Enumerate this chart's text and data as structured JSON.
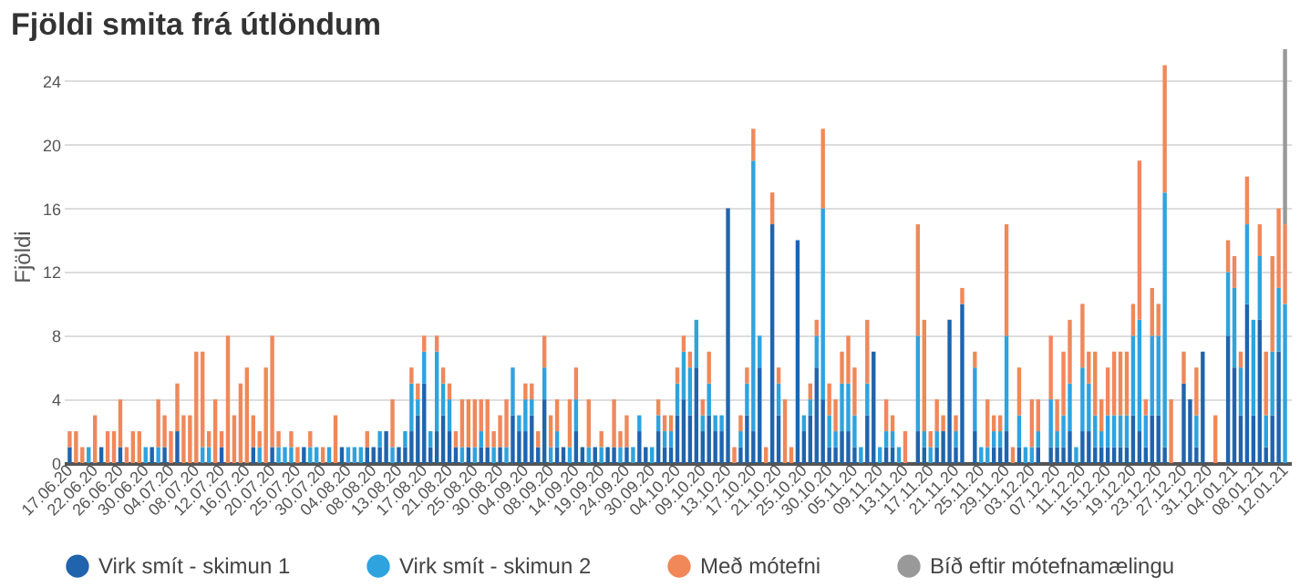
{
  "chart_data": {
    "type": "bar",
    "title": "Fjöldi smita frá útlöndum",
    "ylabel": "Fjöldi",
    "stacked": true,
    "grid": "y",
    "legend": "bottom",
    "ylim": [
      0,
      26
    ],
    "yticks": [
      0,
      4,
      8,
      12,
      16,
      20,
      24
    ],
    "categories": [
      "17.06.20",
      null,
      null,
      null,
      "22.06.20",
      null,
      null,
      null,
      "26.06.20",
      null,
      null,
      null,
      "30.06.20",
      null,
      null,
      null,
      "04.07.20",
      null,
      null,
      null,
      "08.07.20",
      null,
      null,
      null,
      "12.07.20",
      null,
      null,
      null,
      "16.07.20",
      null,
      null,
      null,
      "20.07.20",
      null,
      null,
      null,
      "25.07.20",
      null,
      null,
      null,
      "30.07.20",
      null,
      null,
      null,
      "04.08.20",
      null,
      null,
      null,
      "08.08.20",
      null,
      null,
      null,
      "13.08.20",
      null,
      null,
      null,
      "17.08.20",
      null,
      null,
      null,
      "21.08.20",
      null,
      null,
      null,
      "25.08.20",
      null,
      null,
      null,
      "30.08.20",
      null,
      null,
      null,
      "04.09.20",
      null,
      null,
      null,
      "08.09.20",
      null,
      null,
      null,
      "14.09.20",
      null,
      null,
      null,
      "19.09.20",
      null,
      null,
      null,
      "24.09.20",
      null,
      null,
      null,
      "30.09.20",
      null,
      null,
      null,
      "04.10.20",
      null,
      null,
      null,
      "09.10.20",
      null,
      null,
      null,
      "13.10.20",
      null,
      null,
      null,
      "17.10.20",
      null,
      null,
      null,
      "21.10.20",
      null,
      null,
      null,
      "25.10.20",
      null,
      null,
      null,
      "30.10.20",
      null,
      null,
      null,
      "05.11.20",
      null,
      null,
      null,
      "09.11.20",
      null,
      null,
      null,
      "13.11.20",
      null,
      null,
      null,
      "17.11.20",
      null,
      null,
      null,
      "21.11.20",
      null,
      null,
      null,
      "25.11.20",
      null,
      null,
      null,
      "29.11.20",
      null,
      null,
      null,
      "03.12.20",
      null,
      null,
      null,
      "07.12.20",
      null,
      null,
      null,
      "11.12.20",
      null,
      null,
      null,
      "15.12.20",
      null,
      null,
      null,
      "19.12.20",
      null,
      null,
      null,
      "23.12.20",
      null,
      null,
      null,
      "27.12.20",
      null,
      null,
      null,
      "31.12.20",
      null,
      null,
      null,
      "04.01.21",
      null,
      null,
      null,
      "08.01.21",
      null,
      null,
      null,
      "12.01.21"
    ],
    "series": [
      {
        "name": "Virk smít - skimun 1",
        "color": "#1f64ad",
        "values": [
          1,
          0,
          0,
          0,
          0,
          1,
          0,
          0,
          1,
          0,
          0,
          0,
          0,
          1,
          0,
          1,
          0,
          2,
          0,
          0,
          0,
          0,
          0,
          0,
          1,
          0,
          0,
          0,
          0,
          1,
          0,
          0,
          1,
          0,
          0,
          0,
          0,
          1,
          0,
          0,
          0,
          0,
          0,
          1,
          0,
          0,
          0,
          1,
          1,
          1,
          2,
          0,
          1,
          1,
          2,
          3,
          5,
          1,
          2,
          3,
          2,
          1,
          0,
          1,
          0,
          1,
          1,
          0,
          1,
          0,
          3,
          2,
          2,
          3,
          1,
          4,
          0,
          1,
          1,
          0,
          2,
          1,
          0,
          1,
          0,
          1,
          1,
          0,
          1,
          0,
          2,
          1,
          0,
          2,
          1,
          1,
          3,
          4,
          3,
          6,
          2,
          3,
          2,
          2,
          16,
          0,
          1,
          3,
          2,
          6,
          0,
          15,
          3,
          0,
          0,
          14,
          2,
          3,
          6,
          4,
          1,
          1,
          2,
          2,
          1,
          0,
          3,
          7,
          0,
          1,
          1,
          0,
          0,
          0,
          2,
          1,
          0,
          1,
          2,
          9,
          1,
          10,
          0,
          2,
          0,
          0,
          1,
          1,
          2,
          0,
          1,
          0,
          0,
          1,
          0,
          1,
          1,
          1,
          2,
          0,
          2,
          2,
          1,
          1,
          1,
          1,
          1,
          1,
          3,
          2,
          1,
          3,
          3,
          1,
          0,
          0,
          5,
          4,
          1,
          7,
          0,
          0,
          0,
          8,
          6,
          3,
          10,
          3,
          9,
          1,
          3,
          7,
          0
        ]
      },
      {
        "name": "Virk smít - skimun 2",
        "color": "#2ea3de",
        "values": [
          0,
          0,
          0,
          1,
          0,
          0,
          0,
          0,
          0,
          0,
          0,
          0,
          1,
          0,
          1,
          0,
          0,
          0,
          0,
          0,
          0,
          1,
          1,
          0,
          0,
          0,
          0,
          0,
          0,
          0,
          1,
          0,
          0,
          1,
          1,
          1,
          0,
          0,
          1,
          1,
          0,
          1,
          0,
          0,
          1,
          1,
          1,
          0,
          0,
          1,
          0,
          1,
          0,
          1,
          3,
          1,
          2,
          1,
          5,
          2,
          2,
          0,
          1,
          0,
          1,
          1,
          0,
          1,
          0,
          1,
          3,
          1,
          2,
          1,
          0,
          2,
          1,
          1,
          0,
          1,
          2,
          0,
          1,
          0,
          1,
          0,
          0,
          1,
          0,
          1,
          1,
          0,
          1,
          1,
          1,
          1,
          2,
          3,
          3,
          3,
          1,
          2,
          1,
          1,
          0,
          0,
          1,
          2,
          17,
          2,
          0,
          0,
          2,
          0,
          0,
          0,
          1,
          1,
          2,
          12,
          2,
          1,
          3,
          3,
          2,
          1,
          2,
          0,
          1,
          1,
          1,
          1,
          0,
          0,
          6,
          1,
          1,
          1,
          0,
          0,
          1,
          0,
          0,
          4,
          1,
          1,
          1,
          1,
          6,
          0,
          2,
          1,
          1,
          1,
          0,
          3,
          1,
          2,
          3,
          1,
          4,
          3,
          2,
          1,
          2,
          2,
          2,
          2,
          5,
          7,
          2,
          5,
          5,
          16,
          0,
          0,
          0,
          0,
          2,
          0,
          0,
          0,
          0,
          4,
          5,
          3,
          5,
          6,
          4,
          2,
          4,
          4,
          10
        ]
      },
      {
        "name": "Með mótefni",
        "color": "#f0885a",
        "values": [
          1,
          2,
          1,
          0,
          3,
          0,
          2,
          2,
          3,
          1,
          2,
          2,
          0,
          0,
          3,
          2,
          2,
          3,
          3,
          3,
          7,
          6,
          1,
          4,
          1,
          8,
          3,
          5,
          6,
          2,
          1,
          6,
          7,
          1,
          0,
          1,
          1,
          0,
          1,
          0,
          1,
          0,
          3,
          0,
          0,
          0,
          0,
          1,
          0,
          0,
          0,
          3,
          0,
          0,
          1,
          1,
          1,
          0,
          1,
          1,
          1,
          1,
          3,
          3,
          3,
          2,
          3,
          1,
          2,
          3,
          0,
          0,
          1,
          1,
          1,
          2,
          2,
          2,
          0,
          3,
          2,
          0,
          3,
          0,
          1,
          0,
          3,
          1,
          2,
          0,
          0,
          0,
          0,
          1,
          1,
          1,
          1,
          1,
          1,
          0,
          1,
          2,
          0,
          0,
          0,
          1,
          1,
          1,
          2,
          0,
          1,
          2,
          1,
          4,
          1,
          0,
          0,
          1,
          1,
          5,
          2,
          2,
          2,
          3,
          3,
          0,
          4,
          0,
          0,
          2,
          1,
          0,
          2,
          0,
          7,
          7,
          1,
          2,
          1,
          0,
          1,
          1,
          0,
          1,
          0,
          3,
          1,
          1,
          7,
          1,
          3,
          0,
          3,
          2,
          0,
          4,
          2,
          4,
          4,
          0,
          4,
          2,
          4,
          2,
          3,
          4,
          4,
          4,
          2,
          10,
          1,
          3,
          2,
          8,
          4,
          0,
          2,
          0,
          3,
          0,
          0,
          3,
          0,
          2,
          2,
          1,
          3,
          0,
          2,
          4,
          6,
          5,
          5
        ]
      },
      {
        "name": "Bíð eftir mótefnamælingu",
        "color": "#999999",
        "values": [
          0,
          0,
          0,
          0,
          0,
          0,
          0,
          0,
          0,
          0,
          0,
          0,
          0,
          0,
          0,
          0,
          0,
          0,
          0,
          0,
          0,
          0,
          0,
          0,
          0,
          0,
          0,
          0,
          0,
          0,
          0,
          0,
          0,
          0,
          0,
          0,
          0,
          0,
          0,
          0,
          0,
          0,
          0,
          0,
          0,
          0,
          0,
          0,
          0,
          0,
          0,
          0,
          0,
          0,
          0,
          0,
          0,
          0,
          0,
          0,
          0,
          0,
          0,
          0,
          0,
          0,
          0,
          0,
          0,
          0,
          0,
          0,
          0,
          0,
          0,
          0,
          0,
          0,
          0,
          0,
          0,
          0,
          0,
          0,
          0,
          0,
          0,
          0,
          0,
          0,
          0,
          0,
          0,
          0,
          0,
          0,
          0,
          0,
          0,
          0,
          0,
          0,
          0,
          0,
          0,
          0,
          0,
          0,
          0,
          0,
          0,
          0,
          0,
          0,
          0,
          0,
          0,
          0,
          0,
          0,
          0,
          0,
          0,
          0,
          0,
          0,
          0,
          0,
          0,
          0,
          0,
          0,
          0,
          0,
          0,
          0,
          0,
          0,
          0,
          0,
          0,
          0,
          0,
          0,
          0,
          0,
          0,
          0,
          0,
          0,
          0,
          0,
          0,
          0,
          0,
          0,
          0,
          0,
          0,
          0,
          0,
          0,
          0,
          0,
          0,
          0,
          0,
          0,
          0,
          0,
          0,
          0,
          0,
          0,
          0,
          0,
          0,
          0,
          0,
          0,
          0,
          0,
          0,
          0,
          0,
          0,
          0,
          0,
          0,
          0,
          0,
          0,
          11
        ]
      }
    ]
  }
}
